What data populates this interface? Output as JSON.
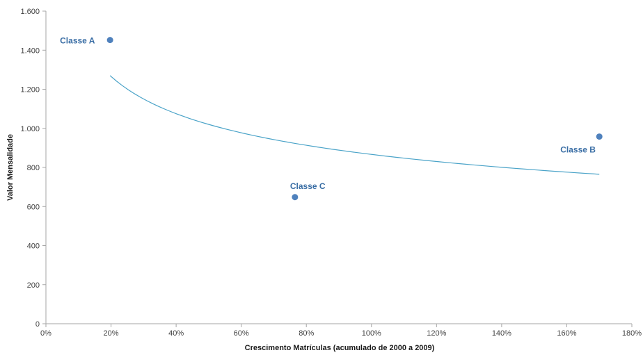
{
  "chart_data": {
    "type": "scatter",
    "title": "",
    "xlabel": "Crescimento Matrículas (acumulado de 2000 a 2009)",
    "ylabel": "Valor Mensalidade",
    "xlim": [
      0,
      180
    ],
    "ylim": [
      0,
      1600
    ],
    "x_ticks": [
      0,
      20,
      40,
      60,
      80,
      100,
      120,
      140,
      160,
      180
    ],
    "x_tick_labels": [
      "0%",
      "20%",
      "40%",
      "60%",
      "80%",
      "100%",
      "120%",
      "140%",
      "160%",
      "180%"
    ],
    "y_ticks": [
      0,
      200,
      400,
      600,
      800,
      1000,
      1200,
      1400,
      1600
    ],
    "y_tick_labels": [
      "0",
      "200",
      "400",
      "600",
      "800",
      "1.000",
      "1.200",
      "1.400",
      "1.600"
    ],
    "grid": false,
    "legend": "none",
    "colors": {
      "point": "#4f81bd",
      "trendline": "#4aa3c8",
      "label": "#3a6ea5",
      "axis": "#a6a6a6"
    },
    "series": [
      {
        "points": [
          {
            "label": "Classe A",
            "x": 19.7,
            "y": 1452
          },
          {
            "label": "Classe C",
            "x": 76.5,
            "y": 648
          },
          {
            "label": "Classe B",
            "x": 170,
            "y": 958
          }
        ]
      }
    ],
    "trendline": {
      "type": "power",
      "x_start": 19.7,
      "x_end": 170,
      "y_start": 1270,
      "y_end": 765
    }
  }
}
